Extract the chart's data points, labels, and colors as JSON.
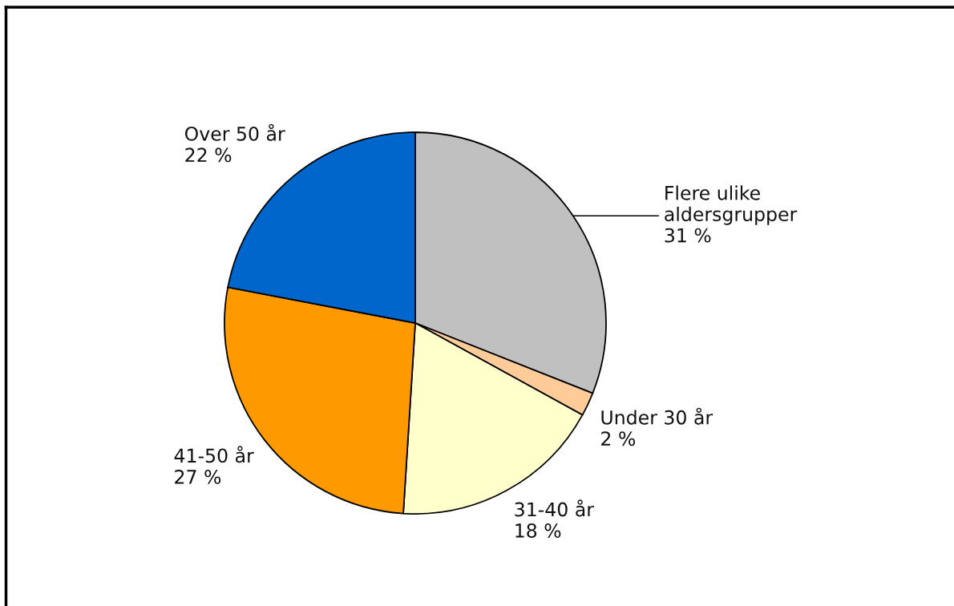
{
  "chart_data": {
    "type": "pie",
    "categories": [
      "Flere ulike\naldersgrupper",
      "Under 30 år",
      "31-40 år",
      "41-50 år",
      "Over 50 år"
    ],
    "values": [
      31,
      2,
      18,
      27,
      22
    ],
    "colors": [
      "#c0c0c0",
      "#ffcc99",
      "#ffffcc",
      "#ff9900",
      "#0066cc"
    ],
    "value_labels": [
      "31 %",
      "2 %",
      "18 %",
      "27 %",
      "22 %"
    ]
  }
}
